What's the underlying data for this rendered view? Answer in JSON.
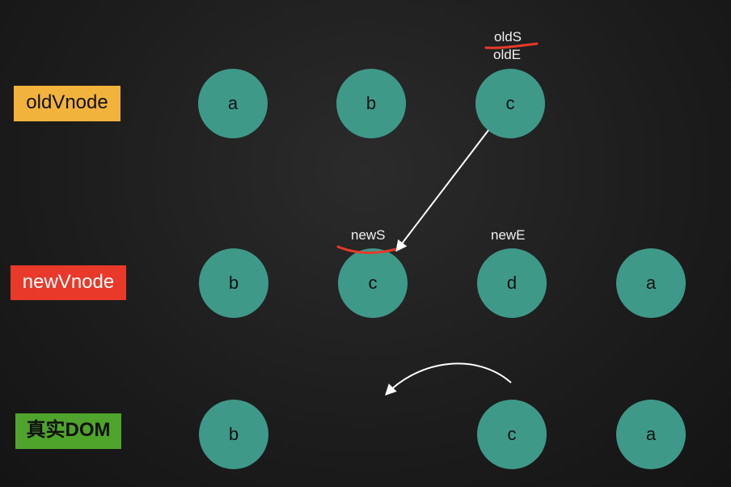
{
  "rows": {
    "old_label": "oldVnode",
    "new_label": "newVnode",
    "dom_label": "真实DOM"
  },
  "old_nodes": [
    "a",
    "b",
    "c"
  ],
  "new_nodes": [
    "b",
    "c",
    "d",
    "a"
  ],
  "dom_nodes": [
    "b",
    "c",
    "a"
  ],
  "pointers": {
    "old_start": "oldS",
    "old_end": "oldE",
    "new_start": "newS",
    "new_end": "newE"
  },
  "colors": {
    "node": "#3f9988",
    "old_label_bg": "#f2b33c",
    "new_label_bg": "#e8392a",
    "dom_label_bg": "#4fa42c",
    "strike": "#e8392a",
    "arrow": "#ffffff"
  }
}
